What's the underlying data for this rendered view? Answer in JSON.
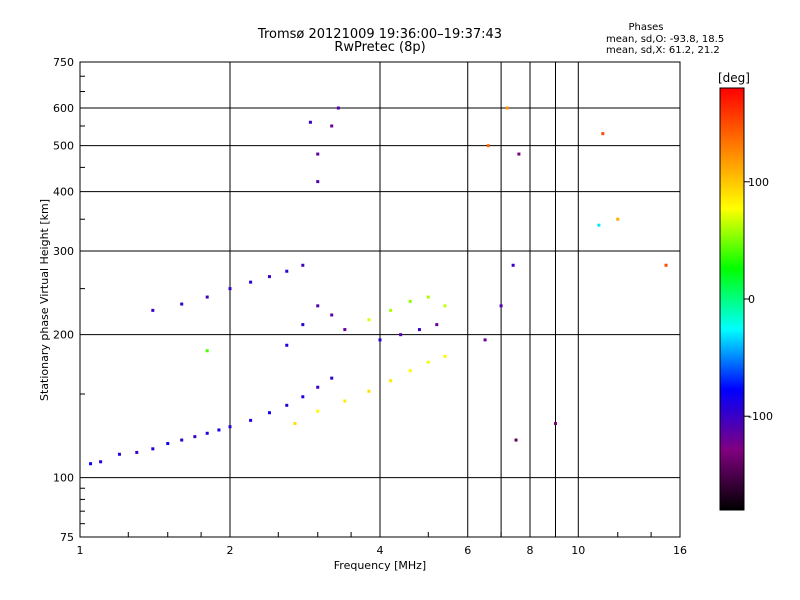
{
  "header": {
    "title_line1": "Tromsø 20121009 19:36:00–19:37:43",
    "title_line2": "RwPretec (8p)"
  },
  "stats": {
    "heading": "Phases",
    "line_o": "mean, sd,O: -93.8, 18.5",
    "line_x": "mean, sd,X:  61.2, 21.2"
  },
  "colorbar": {
    "label": "[deg]",
    "ticks": [
      "100",
      "0",
      "-100"
    ],
    "tick_values": [
      100,
      0,
      -100
    ],
    "range": [
      -180,
      180
    ],
    "colors": [
      "#ff0000",
      "#ff8000",
      "#ffff00",
      "#00ff00",
      "#00ffff",
      "#0000ff",
      "#800080",
      "#000000"
    ]
  },
  "chart_data": {
    "type": "scatter",
    "title": "Tromsø 20121009 19:36:00–19:37:43",
    "subtitle": "RwPretec (8p)",
    "xlabel": "Frequency [MHz]",
    "ylabel": "Stationary phase Virtual Height [km]",
    "xscale": "log",
    "yscale": "log",
    "xlim": [
      1,
      16
    ],
    "ylim": [
      75,
      750
    ],
    "x_ticks": [
      1,
      2,
      4,
      6,
      8,
      10,
      16
    ],
    "x_tick_labels": [
      "1",
      "2",
      "4",
      "6",
      "8",
      "10",
      "16"
    ],
    "y_ticks": [
      75,
      100,
      200,
      300,
      400,
      500,
      600,
      750
    ],
    "y_tick_labels": [
      "75",
      "100",
      "200",
      "300",
      "400",
      "500",
      "600",
      "750"
    ],
    "grid": true,
    "color_encoding": "phase [deg]",
    "points": [
      [
        1.05,
        107,
        -80
      ],
      [
        1.1,
        108,
        -90
      ],
      [
        1.2,
        112,
        -95
      ],
      [
        1.3,
        113,
        -100
      ],
      [
        1.4,
        115,
        -90
      ],
      [
        1.5,
        118,
        -85
      ],
      [
        1.6,
        120,
        -95
      ],
      [
        1.7,
        122,
        -100
      ],
      [
        1.8,
        124,
        -90
      ],
      [
        1.9,
        126,
        -85
      ],
      [
        2.0,
        128,
        -95
      ],
      [
        2.2,
        132,
        -90
      ],
      [
        2.4,
        137,
        -85
      ],
      [
        2.6,
        142,
        -95
      ],
      [
        2.8,
        148,
        -90
      ],
      [
        3.0,
        155,
        -100
      ],
      [
        3.2,
        162,
        -95
      ],
      [
        1.4,
        225,
        -100
      ],
      [
        1.6,
        232,
        -95
      ],
      [
        1.8,
        240,
        -105
      ],
      [
        2.0,
        250,
        -100
      ],
      [
        2.2,
        258,
        -95
      ],
      [
        2.4,
        265,
        -100
      ],
      [
        2.6,
        272,
        -95
      ],
      [
        2.8,
        280,
        -105
      ],
      [
        2.6,
        190,
        -90
      ],
      [
        2.8,
        210,
        -95
      ],
      [
        3.0,
        230,
        -110
      ],
      [
        3.2,
        220,
        -115
      ],
      [
        3.4,
        205,
        -120
      ],
      [
        3.0,
        480,
        -115
      ],
      [
        3.0,
        420,
        -110
      ],
      [
        3.2,
        550,
        -120
      ],
      [
        3.3,
        600,
        -110
      ],
      [
        2.9,
        560,
        -100
      ],
      [
        2.7,
        130,
        90
      ],
      [
        3.0,
        138,
        80
      ],
      [
        3.4,
        145,
        85
      ],
      [
        3.8,
        152,
        90
      ],
      [
        4.2,
        160,
        85
      ],
      [
        4.6,
        168,
        80
      ],
      [
        5.0,
        175,
        75
      ],
      [
        5.4,
        180,
        80
      ],
      [
        3.8,
        215,
        70
      ],
      [
        4.2,
        225,
        60
      ],
      [
        4.6,
        235,
        55
      ],
      [
        5.0,
        240,
        60
      ],
      [
        5.4,
        230,
        65
      ],
      [
        4.0,
        195,
        -90
      ],
      [
        4.4,
        200,
        -110
      ],
      [
        4.8,
        205,
        -100
      ],
      [
        5.2,
        210,
        -120
      ],
      [
        6.5,
        195,
        -120
      ],
      [
        7.0,
        230,
        -110
      ],
      [
        7.4,
        280,
        -100
      ],
      [
        6.6,
        500,
        140
      ],
      [
        7.2,
        600,
        120
      ],
      [
        7.6,
        480,
        -130
      ],
      [
        11.2,
        530,
        150
      ],
      [
        15.0,
        280,
        150
      ],
      [
        12.0,
        350,
        110
      ],
      [
        11.0,
        340,
        -30
      ],
      [
        9.0,
        130,
        -130
      ],
      [
        7.5,
        120,
        -140
      ],
      [
        1.8,
        185,
        40
      ]
    ]
  }
}
